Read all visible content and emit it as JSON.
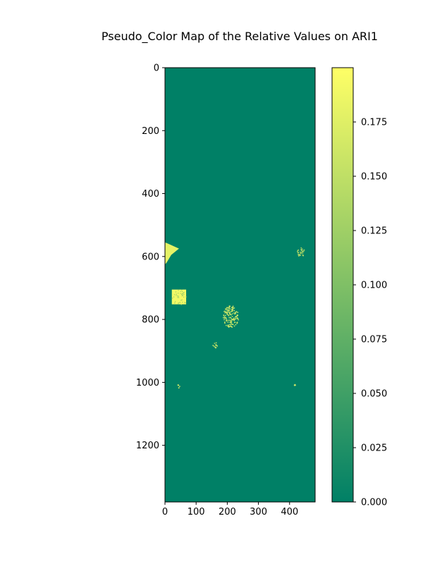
{
  "chart_data": {
    "type": "heatmap",
    "title": "Pseudo_Color Map of the Relative Values on ARI1",
    "xlabel": "",
    "ylabel": "",
    "xlim": [
      0,
      482
    ],
    "ylim": [
      1380,
      0
    ],
    "x_ticks": [
      0,
      100,
      200,
      300,
      400
    ],
    "x_tick_labels": [
      "0",
      "100",
      "200",
      "300",
      "400"
    ],
    "y_ticks": [
      0,
      200,
      400,
      600,
      800,
      1000,
      1200
    ],
    "y_tick_labels": [
      "0",
      "200",
      "400",
      "600",
      "800",
      "1000",
      "1200"
    ],
    "colormap": "summer",
    "colormap_stops": [
      "#008066",
      "#ffff66"
    ],
    "background_value": 0.0,
    "colorbar": {
      "min": 0.0,
      "max": 0.2,
      "ticks": [
        0.0,
        0.025,
        0.05,
        0.075,
        0.1,
        0.125,
        0.15,
        0.175
      ],
      "tick_labels": [
        "0.000",
        "0.025",
        "0.050",
        "0.075",
        "0.100",
        "0.125",
        "0.150",
        "0.175"
      ]
    },
    "grid": false,
    "hotspots": [
      {
        "label": "triangular patch near left edge",
        "shape": "polygon",
        "points": [
          [
            0,
            555
          ],
          [
            12,
            560
          ],
          [
            45,
            575
          ],
          [
            20,
            595
          ],
          [
            5,
            620
          ],
          [
            0,
            625
          ]
        ],
        "value": 0.18
      },
      {
        "label": "rectangular patch",
        "shape": "rect",
        "x0": 22,
        "y0": 705,
        "x1": 68,
        "y1": 752,
        "value": 0.19
      },
      {
        "label": "scatter cluster center",
        "shape": "cluster",
        "cx": 210,
        "cy": 790,
        "rx": 25,
        "ry": 35,
        "value": 0.16
      },
      {
        "label": "scatter cluster lower",
        "shape": "cluster",
        "cx": 160,
        "cy": 880,
        "rx": 8,
        "ry": 10,
        "value": 0.15
      },
      {
        "label": "scatter cluster right",
        "shape": "cluster",
        "cx": 435,
        "cy": 585,
        "rx": 12,
        "ry": 15,
        "value": 0.14
      },
      {
        "label": "small spot",
        "shape": "cluster",
        "cx": 42,
        "cy": 1012,
        "rx": 6,
        "ry": 6,
        "value": 0.17
      },
      {
        "label": "small spot",
        "shape": "cluster",
        "cx": 415,
        "cy": 1008,
        "rx": 3,
        "ry": 3,
        "value": 0.16
      }
    ]
  }
}
